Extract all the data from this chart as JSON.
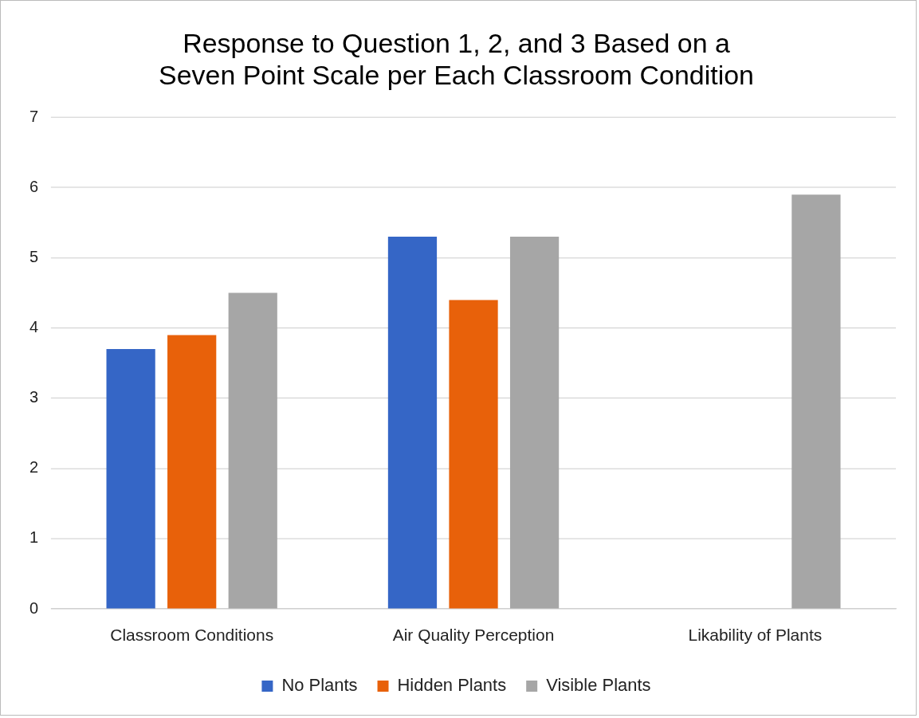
{
  "chart_data": {
    "type": "bar",
    "title": [
      "Response to Question 1, 2, and 3 Based on a",
      "Seven Point Scale per Each Classroom Condition"
    ],
    "categories": [
      "Classroom Conditions",
      "Air Quality Perception",
      "Likability of Plants"
    ],
    "series": [
      {
        "name": "No Plants",
        "color": "#3566c6",
        "values": [
          3.7,
          5.3,
          null
        ]
      },
      {
        "name": "Hidden Plants",
        "color": "#e8610a",
        "values": [
          3.9,
          4.4,
          null
        ]
      },
      {
        "name": "Visible Plants",
        "color": "#a6a6a6",
        "values": [
          4.5,
          5.3,
          5.9
        ]
      }
    ],
    "ylim": [
      0,
      7
    ],
    "yticks": [
      0,
      1,
      2,
      3,
      4,
      5,
      6,
      7
    ],
    "grid": "y",
    "legend": "bottom"
  }
}
